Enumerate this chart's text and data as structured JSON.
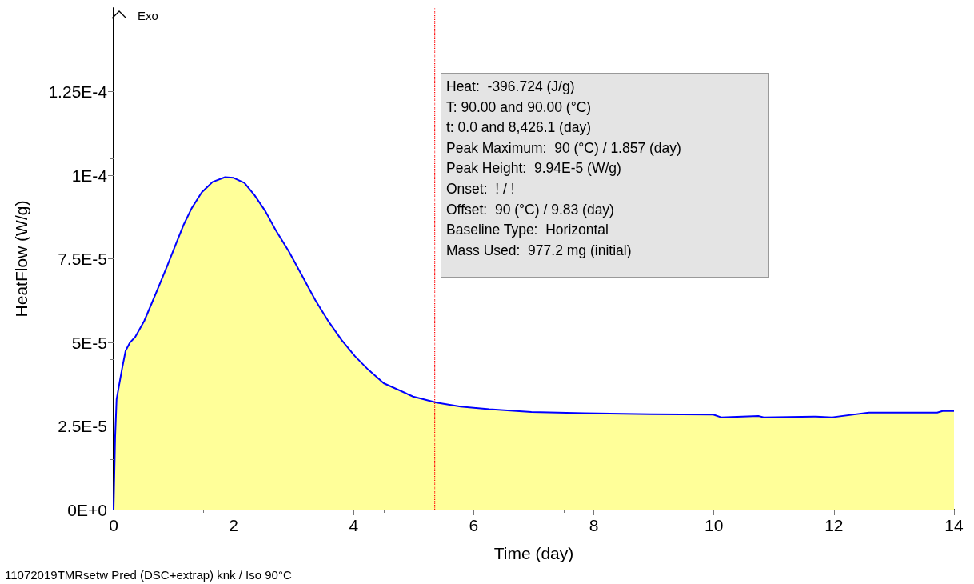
{
  "chart_data": {
    "type": "area",
    "xlabel": "Time (day)",
    "ylabel": "HeatFlow (W/g)",
    "xlim": [
      0,
      14
    ],
    "xticks": [
      0,
      2,
      4,
      6,
      8,
      10,
      12,
      14
    ],
    "ylim": [
      0,
      0.00015
    ],
    "yticks": [
      {
        "value": 0,
        "label": "0E+0"
      },
      {
        "value": 2.5e-05,
        "label": "2.5E-5"
      },
      {
        "value": 5e-05,
        "label": "5E-5"
      },
      {
        "value": 7.5e-05,
        "label": "7.5E-5"
      },
      {
        "value": 0.0001,
        "label": "1E-4"
      },
      {
        "value": 0.000125,
        "label": "1.25E-4"
      }
    ],
    "grid": false,
    "marker": "none",
    "line_style": "solid",
    "series": [
      {
        "color": "#ffff99",
        "x": [
          0,
          0.026,
          0.05,
          0.09,
          0.14,
          0.2,
          0.27,
          0.36,
          0.51,
          0.64,
          0.77,
          0.9,
          1.04,
          1.17,
          1.3,
          1.47,
          1.65,
          1.857,
          2.0,
          2.18,
          2.35,
          2.53,
          2.7,
          2.92,
          3.14,
          3.36,
          3.58,
          3.8,
          4.02,
          4.24,
          4.5,
          4.99,
          5.38,
          5.78,
          6.26,
          6.96,
          7.84,
          8.94,
          9.99,
          10.12,
          10.74,
          10.83,
          11.7,
          11.97,
          12.58,
          13.72,
          13.81,
          14.0
        ],
        "values": [
          0,
          2.17e-05,
          3.3e-05,
          3.7e-05,
          4.2e-05,
          4.75e-05,
          4.99e-05,
          5.16e-05,
          5.64e-05,
          6.19e-05,
          6.75e-05,
          7.32e-05,
          7.95e-05,
          8.53e-05,
          9.01e-05,
          9.49e-05,
          9.8e-05,
          9.94e-05,
          9.92e-05,
          9.77e-05,
          9.4e-05,
          8.92e-05,
          8.36e-05,
          7.72e-05,
          7e-05,
          6.27e-05,
          5.63e-05,
          5.07e-05,
          4.59e-05,
          4.19e-05,
          3.78e-05,
          3.38e-05,
          3.2e-05,
          3.08e-05,
          3e-05,
          2.92e-05,
          2.88e-05,
          2.85e-05,
          2.84e-05,
          2.76e-05,
          2.8e-05,
          2.76e-05,
          2.78e-05,
          2.76e-05,
          2.9e-05,
          2.9e-05,
          2.95e-05,
          2.95e-05
        ]
      }
    ],
    "ref_lines": [
      {
        "axis": "x",
        "value": 5.35,
        "color": "#ff0000",
        "line_style": "dotted"
      }
    ],
    "annotations": [
      "Exo",
      "Heat:  -396.724 (J/g)",
      "T: 90.00 and 90.00 (°C)",
      "t: 0.0 and 8,426.1 (day)",
      "Peak Maximum:  90 (°C) / 1.857 (day)",
      "Peak Height:  9.94E-5 (W/g)",
      "Onset:  ! / !",
      "Offset:  90 (°C) / 9.83 (day)",
      "Baseline Type:  Horizontal",
      "Mass Used:  977.2 mg (initial)",
      "11072019TMRsetw Pred (DSC+extrap) knk / Iso 90°C"
    ]
  }
}
